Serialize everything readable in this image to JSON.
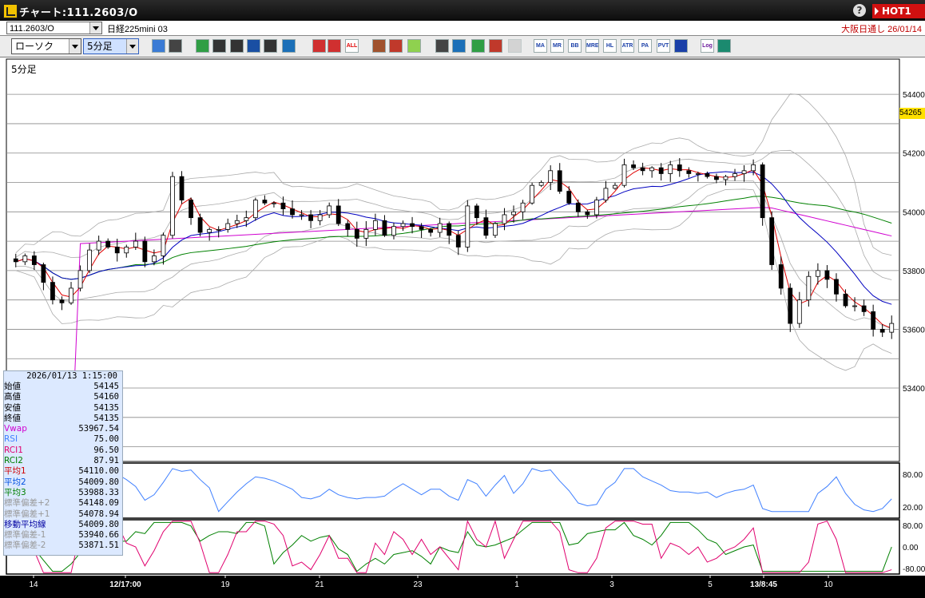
{
  "window": {
    "title": "チャート:111.2603/O",
    "help_icon": "help-icon",
    "hot_label": "HOT1"
  },
  "symbolbar": {
    "symbol_code": "111.2603/O",
    "instrument_name": "日経225mini 03",
    "session": "大阪日通し 26/01/14"
  },
  "toolbar": {
    "chart_type": "ローソク",
    "timeframe": "5分足",
    "buttons": [
      {
        "name": "zoom-icon",
        "label": ""
      },
      {
        "name": "crosshair-icon",
        "label": ""
      },
      {
        "name": "pen-icon",
        "label": ""
      },
      {
        "name": "link-icon",
        "label": ""
      },
      {
        "name": "pointer-icon",
        "label": ""
      },
      {
        "name": "draw-icon",
        "label": ""
      },
      {
        "name": "memo-icon",
        "label": ""
      },
      {
        "name": "trash-icon",
        "label": ""
      },
      {
        "name": "candle-left-icon",
        "label": ""
      },
      {
        "name": "candle-right-icon",
        "label": ""
      },
      {
        "name": "all-icon",
        "label": "ALL"
      },
      {
        "name": "settings-icon",
        "label": ""
      },
      {
        "name": "tool-icon",
        "label": ""
      },
      {
        "name": "color-icon",
        "label": ""
      },
      {
        "name": "export-icon",
        "label": ""
      },
      {
        "name": "search-icon",
        "label": ""
      },
      {
        "name": "layout-icon",
        "label": ""
      },
      {
        "name": "compare-icon",
        "label": ""
      },
      {
        "name": "disabled-icon",
        "label": ""
      },
      {
        "name": "ma-icon",
        "label": "MA"
      },
      {
        "name": "mr-icon",
        "label": "MR"
      },
      {
        "name": "bb-icon",
        "label": "BB"
      },
      {
        "name": "mre-icon",
        "label": "MRE"
      },
      {
        "name": "hl-icon",
        "label": "HL"
      },
      {
        "name": "atr-icon",
        "label": "ATR"
      },
      {
        "name": "para-icon",
        "label": "PA"
      },
      {
        "name": "pvt-icon",
        "label": "PVT"
      },
      {
        "name": "box-icon",
        "label": ""
      },
      {
        "name": "log-icon",
        "label": "Log"
      },
      {
        "name": "exit-icon",
        "label": ""
      }
    ]
  },
  "panel_label": "5分足",
  "price_tag": "54265",
  "info": {
    "datetime": "2026/01/13  1:15:00",
    "rows": [
      {
        "k": "始値",
        "v": "54145",
        "c": "#000000"
      },
      {
        "k": "高値",
        "v": "54160",
        "c": "#000000"
      },
      {
        "k": "安値",
        "v": "54135",
        "c": "#000000"
      },
      {
        "k": "終値",
        "v": "54135",
        "c": "#000000"
      },
      {
        "k": "Vwap",
        "v": "53967.54",
        "c": "#d000d0"
      },
      {
        "k": "RSI",
        "v": "75.00",
        "c": "#4080ff"
      },
      {
        "k": "RCI1",
        "v": "96.50",
        "c": "#e00070"
      },
      {
        "k": "RCI2",
        "v": "87.91",
        "c": "#008000"
      },
      {
        "k": "平均1",
        "v": "54110.00",
        "c": "#d00000"
      },
      {
        "k": "平均2",
        "v": "54009.80",
        "c": "#0050e0"
      },
      {
        "k": "平均3",
        "v": "53988.33",
        "c": "#008000"
      },
      {
        "k": "標準偏差+2",
        "v": "54148.09",
        "c": "#999999"
      },
      {
        "k": "標準偏差+1",
        "v": "54078.94",
        "c": "#999999"
      },
      {
        "k": "移動平均線",
        "v": "54009.80",
        "c": "#0000a0"
      },
      {
        "k": "標準偏差-1",
        "v": "53940.66",
        "c": "#999999"
      },
      {
        "k": "標準偏差-2",
        "v": "53871.51",
        "c": "#999999"
      }
    ]
  },
  "chart_data": {
    "type": "candlestick",
    "timeframe": "5分足",
    "x_tick_labels": [
      "14",
      "12/17:00",
      "19",
      "21",
      "23",
      "1",
      "3",
      "5",
      "13/8:45",
      "10"
    ],
    "price_axis": {
      "labels": [
        "54400",
        "54200",
        "54000",
        "53800",
        "53600",
        "53400"
      ],
      "range": [
        53150,
        54520
      ]
    },
    "close_series": [
      53830,
      53850,
      53820,
      53760,
      53700,
      53690,
      53740,
      53800,
      53870,
      53900,
      53880,
      53860,
      53880,
      53900,
      53830,
      53850,
      53920,
      54120,
      54040,
      53980,
      53930,
      53940,
      53940,
      53960,
      53970,
      53980,
      54040,
      54030,
      54030,
      54010,
      53990,
      53990,
      53970,
      53990,
      54020,
      53960,
      53940,
      53910,
      53940,
      53970,
      53920,
      53950,
      53960,
      53950,
      53940,
      53930,
      53960,
      53920,
      53880,
      54020,
      53980,
      53920,
      53960,
      53990,
      54000,
      54030,
      54090,
      54100,
      54140,
      54070,
      54030,
      54000,
      53990,
      54040,
      54080,
      54090,
      54160,
      54150,
      54140,
      54150,
      54130,
      54160,
      54140,
      54130,
      54130,
      54120,
      54110,
      54120,
      54130,
      54140,
      54160,
      53980,
      53820,
      53740,
      53620,
      53700,
      53780,
      53800,
      53770,
      53720,
      53680,
      53680,
      53660,
      53600,
      53590,
      53620
    ],
    "rsi": {
      "labels": [
        "80.00",
        "20.00"
      ],
      "range": [
        0,
        100
      ]
    },
    "rci": {
      "labels": [
        "80.00",
        "0.00",
        "-80.00"
      ],
      "range": [
        -100,
        100
      ]
    },
    "colors": {
      "up": "#ffffff",
      "down": "#000000",
      "ma_fast": "#e00000",
      "ma_mid": "#0000c0",
      "ma_slow": "#008000",
      "vwap": "#d000d0",
      "bands": "#aaaaaa",
      "rsi": "#4080ff",
      "rci1": "#e0006e",
      "rci2": "#008000"
    }
  }
}
